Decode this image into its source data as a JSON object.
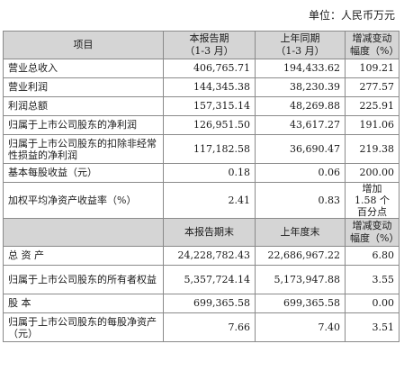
{
  "unit_label": "单位：人民币万元",
  "header1": {
    "item": "项目",
    "current_line1": "本报告期",
    "current_line2": "（1-3 月）",
    "prior_line1": "上年同期",
    "prior_line2": "（1-3 月）",
    "change_line1": "增减变动",
    "change_line2": "幅度（%）"
  },
  "rows1": [
    {
      "label": "营业总收入",
      "current": "406,765.71",
      "prior": "194,433.62",
      "change": "109.21"
    },
    {
      "label": "营业利润",
      "current": "144,345.38",
      "prior": "38,230.39",
      "change": "277.57"
    },
    {
      "label": "利润总额",
      "current": "157,315.14",
      "prior": "48,269.88",
      "change": "225.91"
    },
    {
      "label": "归属于上市公司股东的净利润",
      "current": "126,951.50",
      "prior": "43,617.27",
      "change": "191.06"
    },
    {
      "label": "归属于上市公司股东的扣除非经常性损益的净利润",
      "current": "117,182.58",
      "prior": "36,690.47",
      "change": "219.38"
    },
    {
      "label": "基本每股收益（元）",
      "current": "0.18",
      "prior": "0.06",
      "change": "200.00"
    },
    {
      "label": "加权平均净资产收益率（%）",
      "current": "2.41",
      "prior": "0.83",
      "change": "增加 1.58 个百分点"
    }
  ],
  "header2": {
    "current": "本报告期末",
    "prior": "上年度末",
    "change_line1": "增减变动",
    "change_line2": "幅度（%）"
  },
  "rows2": [
    {
      "label": "总 资 产",
      "current": "24,228,782.43",
      "prior": "22,686,967.22",
      "change": "6.80"
    },
    {
      "label": "归属于上市公司股东的所有者权益",
      "current": "5,357,724.14",
      "prior": "5,173,947.88",
      "change": "3.55"
    },
    {
      "label": "股 本",
      "current": "699,365.58",
      "prior": "699,365.58",
      "change": "0.00"
    },
    {
      "label": "归属于上市公司股东的每股净资产（元）",
      "current": "7.66",
      "prior": "7.40",
      "change": "3.51"
    }
  ]
}
